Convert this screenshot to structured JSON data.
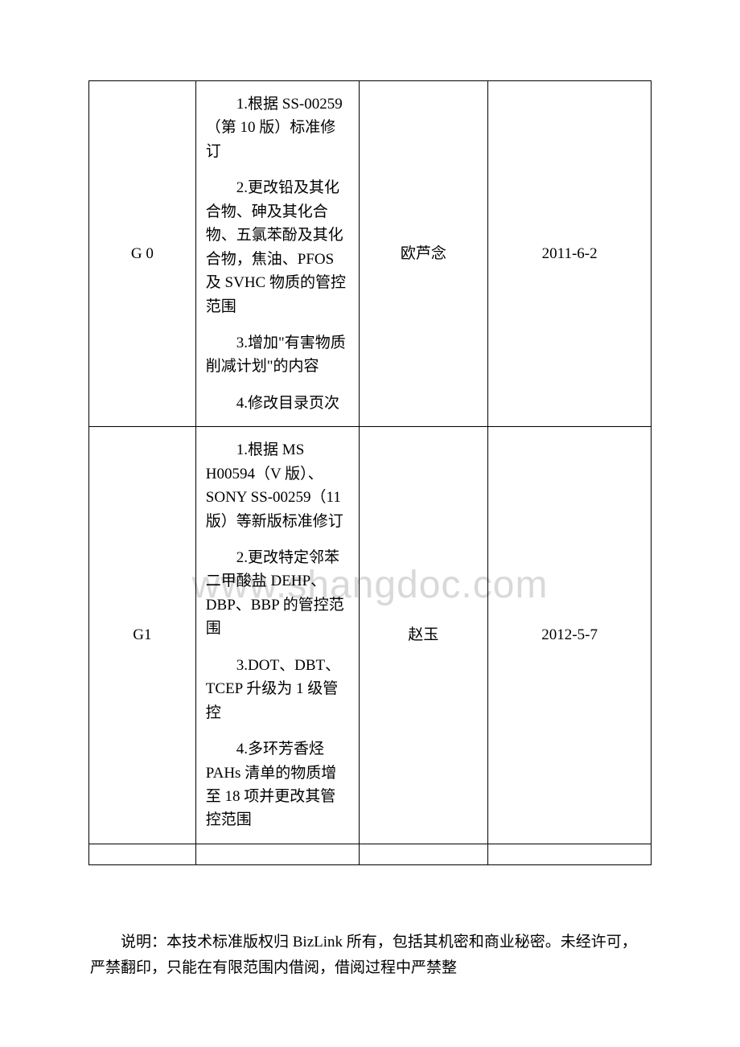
{
  "watermark": "www.shangdoc.com",
  "table": {
    "border_color": "#000000",
    "font_size": 19,
    "rows": [
      {
        "version": "G 0",
        "changes": [
          "1.根据 SS-00259（第 10 版）标准修订",
          "2.更改铅及其化合物、砷及其化合物、五氯苯酚及其化合物，焦油、PFOS 及 SVHC 物质的管控范围",
          "3.增加\"有害物质削减计划\"的内容",
          "4.修改目录页次"
        ],
        "author": "欧芦念",
        "date": "2011-6-2"
      },
      {
        "version": "G1",
        "changes": [
          "1.根据 MS H00594（V 版）、SONY SS-00259（11 版）等新版标准修订",
          "2.更改特定邻苯二甲酸盐 DEHP、DBP、BBP 的管控范围",
          "3.DOT、DBT、TCEP 升级为 1 级管控",
          "4.多环芳香烃 PAHs 清单的物质增至 18 项并更改其管控范围"
        ],
        "author": "赵玉",
        "date": "2012-5-7"
      }
    ]
  },
  "footer_note": "说明：本技术标准版权归 BizLink 所有，包括其机密和商业秘密。未经许可，严禁翻印，只能在有限范围内借阅，借阅过程中严禁整",
  "colors": {
    "background": "#ffffff",
    "text": "#000000",
    "watermark": "#d9d9d9",
    "border": "#000000"
  }
}
